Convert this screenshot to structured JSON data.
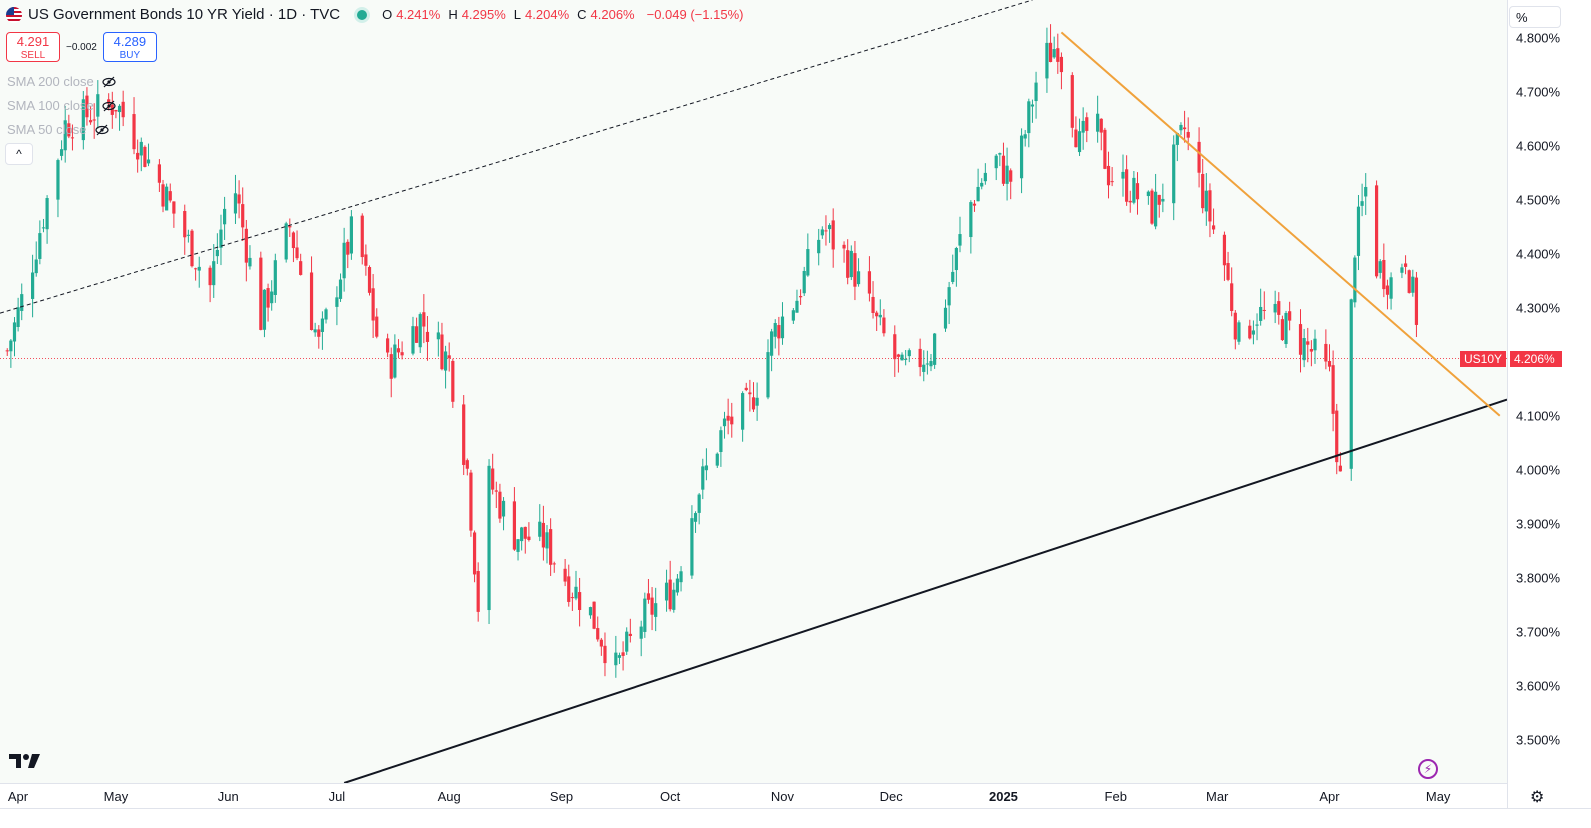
{
  "header": {
    "title": "US Government Bonds 10 YR Yield · 1D · TVC",
    "ohlc": [
      {
        "k": "O",
        "v": "4.241%"
      },
      {
        "k": "H",
        "v": "4.295%"
      },
      {
        "k": "L",
        "v": "4.204%"
      },
      {
        "k": "C",
        "v": "4.206%"
      },
      {
        "k": "",
        "v": "−0.049 (−1.15%)"
      }
    ]
  },
  "trade": {
    "sell_price": "4.291",
    "sell_label": "SELL",
    "spread": "−0.002",
    "buy_price": "4.289",
    "buy_label": "BUY"
  },
  "indicators": [
    "SMA 200 close",
    "SMA 100 close",
    "SMA 50 close"
  ],
  "collapse_icon": "^",
  "scale_mode": "%",
  "symbol_badge": "US10Y",
  "last_price_badge": "4.206%",
  "colors": {
    "up": "#22ab94",
    "down": "#f23645",
    "downtrend": "#f0a23c",
    "support": "#131722",
    "channel": "#131722",
    "accent": "#2962ff"
  },
  "chart_data": {
    "type": "candlestick",
    "title": "US Government Bonds 10 YR Yield · 1D · TVC",
    "ylabel": "%",
    "ylim": [
      3.42,
      4.87
    ],
    "y_ticks": [
      "4.800%",
      "4.700%",
      "4.600%",
      "4.500%",
      "4.400%",
      "4.300%",
      "4.100%",
      "4.000%",
      "3.900%",
      "3.800%",
      "3.700%",
      "3.600%",
      "3.500%"
    ],
    "y_tick_values": [
      4.8,
      4.7,
      4.6,
      4.5,
      4.4,
      4.3,
      4.1,
      4.0,
      3.9,
      3.8,
      3.7,
      3.6,
      3.5
    ],
    "x_ticks": [
      {
        "label": "Apr",
        "day": 0
      },
      {
        "label": "May",
        "day": 30
      },
      {
        "label": "Jun",
        "day": 61
      },
      {
        "label": "Jul",
        "day": 91
      },
      {
        "label": "Aug",
        "day": 122
      },
      {
        "label": "Sep",
        "day": 153
      },
      {
        "label": "Oct",
        "day": 183
      },
      {
        "label": "Nov",
        "day": 214
      },
      {
        "label": "Dec",
        "day": 244
      },
      {
        "label": "2025",
        "day": 275,
        "bold": true
      },
      {
        "label": "Feb",
        "day": 306
      },
      {
        "label": "Mar",
        "day": 334
      },
      {
        "label": "Apr",
        "day": 365
      },
      {
        "label": "May",
        "day": 395
      }
    ],
    "x_domain_days": [
      -2,
      414
    ],
    "last_day": 391,
    "last_close": 4.206,
    "series_anchors": [
      [
        0,
        4.22
      ],
      [
        6,
        4.36
      ],
      [
        16,
        4.64
      ],
      [
        30,
        4.68
      ],
      [
        40,
        4.56
      ],
      [
        50,
        4.42
      ],
      [
        56,
        4.34
      ],
      [
        62,
        4.55
      ],
      [
        70,
        4.28
      ],
      [
        78,
        4.45
      ],
      [
        86,
        4.23
      ],
      [
        96,
        4.46
      ],
      [
        104,
        4.18
      ],
      [
        114,
        4.28
      ],
      [
        122,
        4.2
      ],
      [
        127,
        4.0
      ],
      [
        130,
        3.75
      ],
      [
        133,
        3.98
      ],
      [
        140,
        3.88
      ],
      [
        148,
        3.87
      ],
      [
        155,
        3.79
      ],
      [
        160,
        3.75
      ],
      [
        168,
        3.63
      ],
      [
        176,
        3.73
      ],
      [
        184,
        3.78
      ],
      [
        190,
        3.95
      ],
      [
        198,
        4.08
      ],
      [
        205,
        4.12
      ],
      [
        212,
        4.26
      ],
      [
        218,
        4.32
      ],
      [
        225,
        4.45
      ],
      [
        233,
        4.38
      ],
      [
        240,
        4.27
      ],
      [
        247,
        4.18
      ],
      [
        255,
        4.22
      ],
      [
        260,
        4.34
      ],
      [
        265,
        4.48
      ],
      [
        272,
        4.58
      ],
      [
        278,
        4.53
      ],
      [
        285,
        4.75
      ],
      [
        290,
        4.79
      ],
      [
        296,
        4.6
      ],
      [
        300,
        4.65
      ],
      [
        304,
        4.55
      ],
      [
        310,
        4.52
      ],
      [
        316,
        4.48
      ],
      [
        320,
        4.53
      ],
      [
        325,
        4.63
      ],
      [
        330,
        4.51
      ],
      [
        336,
        4.38
      ],
      [
        340,
        4.24
      ],
      [
        345,
        4.29
      ],
      [
        352,
        4.27
      ],
      [
        360,
        4.22
      ],
      [
        365,
        4.17
      ],
      [
        368,
        3.98
      ],
      [
        370,
        4.17
      ],
      [
        372,
        4.42
      ],
      [
        375,
        4.52
      ],
      [
        378,
        4.38
      ],
      [
        382,
        4.35
      ],
      [
        386,
        4.4
      ],
      [
        391,
        4.21
      ]
    ],
    "lines": [
      {
        "name": "Rising channel (dashed)",
        "from": [
          -2,
          4.29
        ],
        "to": [
          283,
          4.87
        ],
        "style": "dashed"
      },
      {
        "name": "Rising support",
        "from": [
          93,
          3.42
        ],
        "to": [
          414,
          4.13
        ],
        "style": "solid"
      },
      {
        "name": "Falling trendline",
        "from": [
          291,
          4.81
        ],
        "to": [
          412,
          4.1
        ],
        "style": "solid"
      }
    ]
  }
}
